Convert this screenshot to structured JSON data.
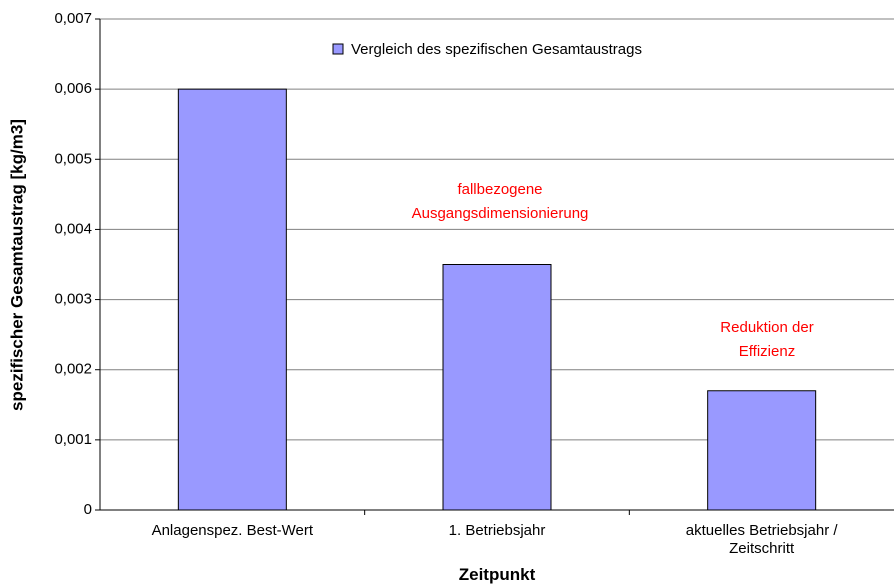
{
  "chart_data": {
    "type": "bar",
    "x_label": "Zeitpunkt",
    "y_label": "spezifischer Gesamtaustrag [kg/m3]",
    "categories": [
      "Anlagenspez. Best-Wert",
      "1. Betriebsjahr",
      "aktuelles Betriebsjahr / Zeitschritt"
    ],
    "series": [
      {
        "name": "Vergleich des spezifischen Gesamtaustrags",
        "color": "#9999ff",
        "values": [
          0.006,
          0.0035,
          0.0017
        ]
      }
    ],
    "ylim": [
      0,
      0.007
    ],
    "yticks": [
      0,
      {
        "value": 0.001,
        "label": "0,001"
      },
      {
        "value": 0.002,
        "label": "0,002"
      },
      {
        "value": 0.003,
        "label": "0,003"
      },
      {
        "value": 0.004,
        "label": "0,004"
      },
      {
        "value": 0.005,
        "label": "0,005"
      },
      {
        "value": 0.006,
        "label": "0,006"
      },
      {
        "value": 0.007,
        "label": "0,007"
      }
    ],
    "grid": true,
    "legend": "top",
    "annotations": [
      {
        "text": "fallbezogene Ausgangsdimensionierung",
        "color": "#ff0000"
      },
      {
        "text": "Reduktion der Effizienz",
        "color": "#ff0000"
      }
    ]
  }
}
